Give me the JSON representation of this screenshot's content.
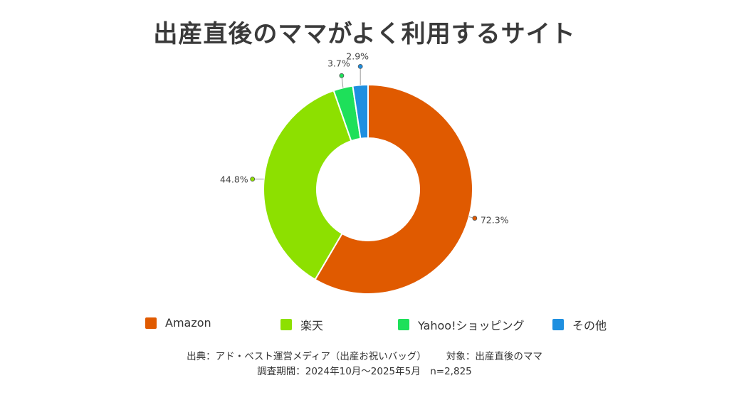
{
  "chart_data": {
    "type": "pie",
    "title": "出産直後のママがよく利用するサイト",
    "categories": [
      "Amazon",
      "楽天",
      "Yahoo!ショッピング",
      "その他"
    ],
    "values": [
      72.3,
      44.8,
      3.7,
      2.9
    ],
    "labels": [
      "72.3%",
      "44.8%",
      "3.7%",
      "2.9%"
    ],
    "colors": [
      "#e05a00",
      "#8de000",
      "#1ee05a",
      "#1e8fe0"
    ],
    "legend_position": "bottom"
  },
  "source": {
    "line1_a": "出典：アド・ベスト運営メディア（出産お祝いバッグ）",
    "line1_b": "対象：出産直後のママ",
    "line2": "調査期間：2024年10月～2025年5月　n=2,825"
  }
}
